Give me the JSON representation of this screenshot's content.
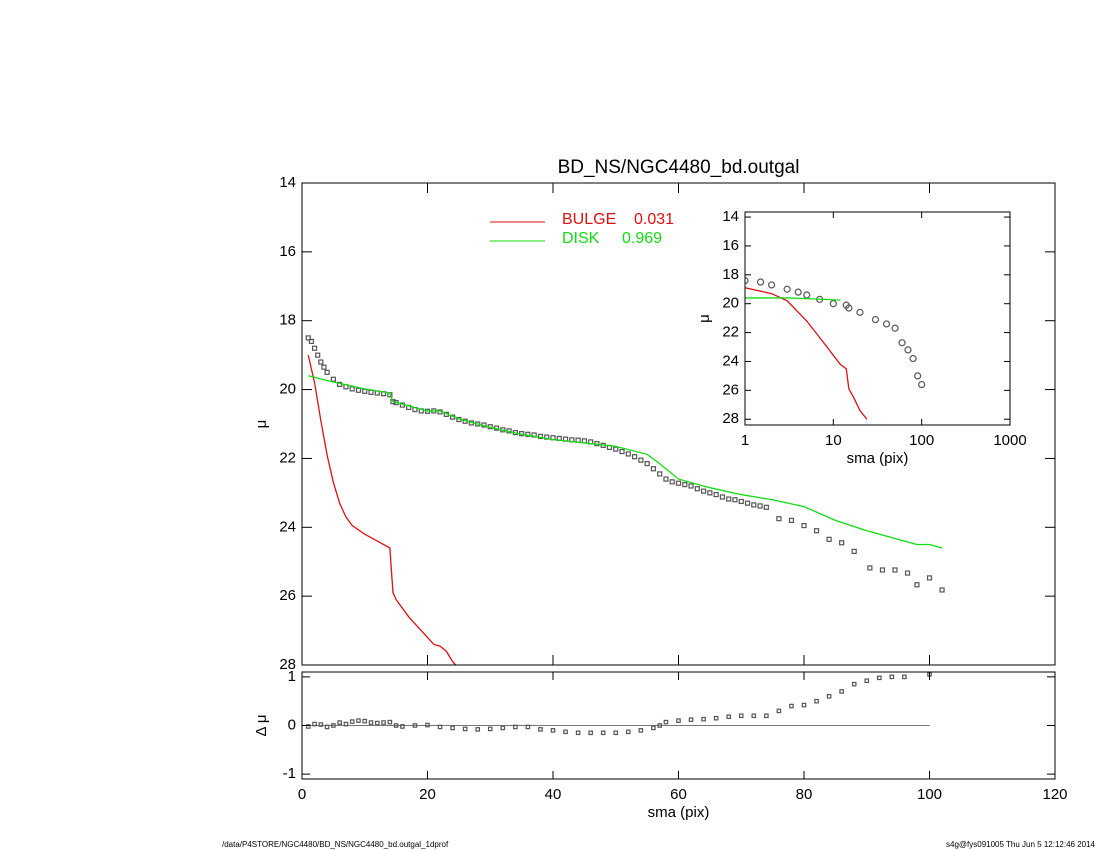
{
  "footer": {
    "left": "/data/P4STORE/NGC4480/BD_NS/NGC4480_bd.outgal_1dprof",
    "right": "s4g@fys091005  Thu Jun  5 12:12:46 2014"
  },
  "chart_data": [
    {
      "type": "scatter",
      "title": "BD_NS/NGC4480_bd.outgal",
      "ylabel": "μ",
      "xlim": [
        0,
        120
      ],
      "xticks": [
        0,
        20,
        40,
        60,
        80,
        100,
        120
      ],
      "show_xtick_labels": false,
      "ylim": [
        28,
        14
      ],
      "yticks": [
        14,
        16,
        18,
        20,
        22,
        24,
        26,
        28
      ],
      "series": [
        {
          "style": "points",
          "marker": "square",
          "color": "#555555",
          "x": [
            1,
            1.5,
            2,
            2.5,
            3,
            3.5,
            4,
            5,
            6,
            7,
            8,
            9,
            10,
            11,
            12,
            13,
            14,
            14.5,
            15,
            16,
            17,
            18,
            19,
            20,
            21,
            22,
            23,
            24,
            25,
            26,
            27,
            28,
            29,
            30,
            31,
            32,
            33,
            34,
            35,
            36,
            37,
            38,
            39,
            40,
            41,
            42,
            43,
            44,
            45,
            46,
            47,
            48,
            49,
            50,
            51,
            52,
            53,
            54,
            55,
            56,
            57,
            58,
            59,
            60,
            61,
            62,
            63,
            64,
            65,
            66,
            67,
            68,
            69,
            70,
            71,
            72,
            73,
            74,
            76,
            78,
            80,
            82,
            84,
            86,
            88,
            90.5,
            92.5,
            94.5,
            96.5,
            98,
            100,
            102
          ],
          "values": [
            18.5,
            18.6,
            18.8,
            19.0,
            19.2,
            19.35,
            19.5,
            19.7,
            19.85,
            19.92,
            19.98,
            20.02,
            20.05,
            20.08,
            20.1,
            20.12,
            20.15,
            20.35,
            20.38,
            20.45,
            20.52,
            20.58,
            20.62,
            20.63,
            20.62,
            20.65,
            20.72,
            20.8,
            20.87,
            20.92,
            20.97,
            21.0,
            21.03,
            21.08,
            21.12,
            21.17,
            21.2,
            21.25,
            21.28,
            21.3,
            21.32,
            21.36,
            21.38,
            21.4,
            21.42,
            21.44,
            21.46,
            21.47,
            21.49,
            21.52,
            21.57,
            21.62,
            21.68,
            21.73,
            21.8,
            21.87,
            21.95,
            22.05,
            22.15,
            22.3,
            22.45,
            22.6,
            22.68,
            22.72,
            22.76,
            22.8,
            22.88,
            22.95,
            23.0,
            23.05,
            23.12,
            23.18,
            23.2,
            23.25,
            23.3,
            23.35,
            23.38,
            23.42,
            23.75,
            23.8,
            23.95,
            24.1,
            24.35,
            24.45,
            24.7,
            25.18,
            25.24,
            25.24,
            25.33,
            25.67,
            25.47,
            25.82
          ]
        },
        {
          "style": "line",
          "name": "BULGE",
          "fraction": 0.031,
          "color": "#dd1111",
          "x": [
            1,
            2,
            3,
            4,
            5,
            6,
            7,
            8,
            10,
            12,
            14,
            14.5,
            15,
            17,
            19,
            21,
            22,
            23,
            24,
            24.5
          ],
          "values": [
            19.0,
            19.8,
            20.9,
            21.9,
            22.7,
            23.3,
            23.7,
            23.95,
            24.2,
            24.4,
            24.6,
            25.9,
            26.1,
            26.6,
            27.0,
            27.4,
            27.45,
            27.6,
            27.9,
            28.0
          ]
        },
        {
          "style": "line",
          "name": "DISK",
          "fraction": 0.969,
          "color": "#11dd11",
          "x": [
            1,
            5,
            10,
            14,
            14.5,
            20,
            22,
            25,
            30,
            35,
            40,
            45,
            50,
            55,
            57,
            60,
            65,
            70,
            75,
            80,
            85,
            90,
            95,
            98,
            100,
            102
          ],
          "values": [
            19.6,
            19.78,
            19.98,
            20.1,
            20.35,
            20.62,
            20.62,
            20.85,
            21.1,
            21.3,
            21.45,
            21.55,
            21.65,
            21.88,
            22.15,
            22.6,
            22.85,
            23.05,
            23.2,
            23.4,
            23.8,
            24.1,
            24.35,
            24.5,
            24.5,
            24.6
          ]
        }
      ]
    },
    {
      "type": "scatter",
      "ylabel": "Δ μ",
      "xlabel": "sma (pix)",
      "xlim": [
        0,
        120
      ],
      "xticks": [
        0,
        20,
        40,
        60,
        80,
        100,
        120
      ],
      "show_xtick_labels": true,
      "ylim": [
        -1.1,
        1.1
      ],
      "yticks": [
        -1,
        0,
        1
      ],
      "reference_line": 0,
      "series": [
        {
          "style": "points",
          "marker": "square",
          "color": "#555555",
          "x": [
            1,
            2,
            3,
            4,
            5,
            6,
            7,
            8,
            9,
            10,
            11,
            12,
            13,
            14,
            15,
            16,
            18,
            20,
            22,
            24,
            26,
            28,
            30,
            32,
            34,
            36,
            38,
            40,
            42,
            44,
            46,
            48,
            50,
            52,
            54,
            56,
            57,
            58,
            60,
            62,
            64,
            66,
            68,
            70,
            72,
            74,
            76,
            78,
            80,
            82,
            84,
            86,
            88,
            90,
            92,
            94,
            96,
            100
          ],
          "values": [
            -0.02,
            0.03,
            0.02,
            -0.03,
            0.0,
            0.06,
            0.03,
            0.08,
            0.1,
            0.09,
            0.06,
            0.05,
            0.06,
            0.07,
            0.0,
            -0.02,
            0.0,
            0.01,
            -0.03,
            -0.05,
            -0.07,
            -0.08,
            -0.07,
            -0.05,
            -0.03,
            -0.03,
            -0.08,
            -0.1,
            -0.13,
            -0.15,
            -0.15,
            -0.15,
            -0.15,
            -0.13,
            -0.1,
            -0.05,
            0.0,
            0.07,
            0.1,
            0.12,
            0.13,
            0.15,
            0.18,
            0.2,
            0.2,
            0.2,
            0.3,
            0.4,
            0.42,
            0.5,
            0.6,
            0.7,
            0.85,
            0.92,
            0.98,
            1.0,
            1.0,
            1.05
          ]
        }
      ]
    },
    {
      "type": "scatter",
      "ylabel": "μ",
      "xlabel": "sma (pix)",
      "xlog": true,
      "xlim": [
        1,
        1000
      ],
      "xticks": [
        1,
        10,
        100,
        1000
      ],
      "show_xtick_labels": true,
      "ylim": [
        28.4,
        13.65
      ],
      "yticks": [
        14,
        16,
        18,
        20,
        22,
        24,
        26,
        28
      ],
      "series": [
        {
          "style": "points",
          "marker": "circle",
          "color": "#555555",
          "x": [
            1,
            1.5,
            2,
            3,
            4,
            5,
            7,
            10,
            14,
            15,
            20,
            30,
            40,
            50,
            60,
            70,
            80,
            90,
            100
          ],
          "values": [
            18.4,
            18.5,
            18.7,
            19.0,
            19.2,
            19.4,
            19.7,
            20.0,
            20.1,
            20.3,
            20.6,
            21.1,
            21.4,
            21.7,
            22.7,
            23.2,
            23.8,
            25.0,
            25.6
          ]
        },
        {
          "style": "line",
          "color": "#dd1111",
          "x": [
            1,
            2,
            3,
            5,
            8,
            12,
            14,
            15,
            17,
            20,
            24
          ],
          "values": [
            18.9,
            19.3,
            19.8,
            21.2,
            22.8,
            24.2,
            24.5,
            25.9,
            26.5,
            27.4,
            28.0
          ]
        },
        {
          "style": "line",
          "color": "#11dd11",
          "x": [
            1,
            3,
            5,
            8,
            12
          ],
          "values": [
            19.6,
            19.6,
            19.65,
            19.7,
            19.75
          ]
        }
      ]
    }
  ]
}
